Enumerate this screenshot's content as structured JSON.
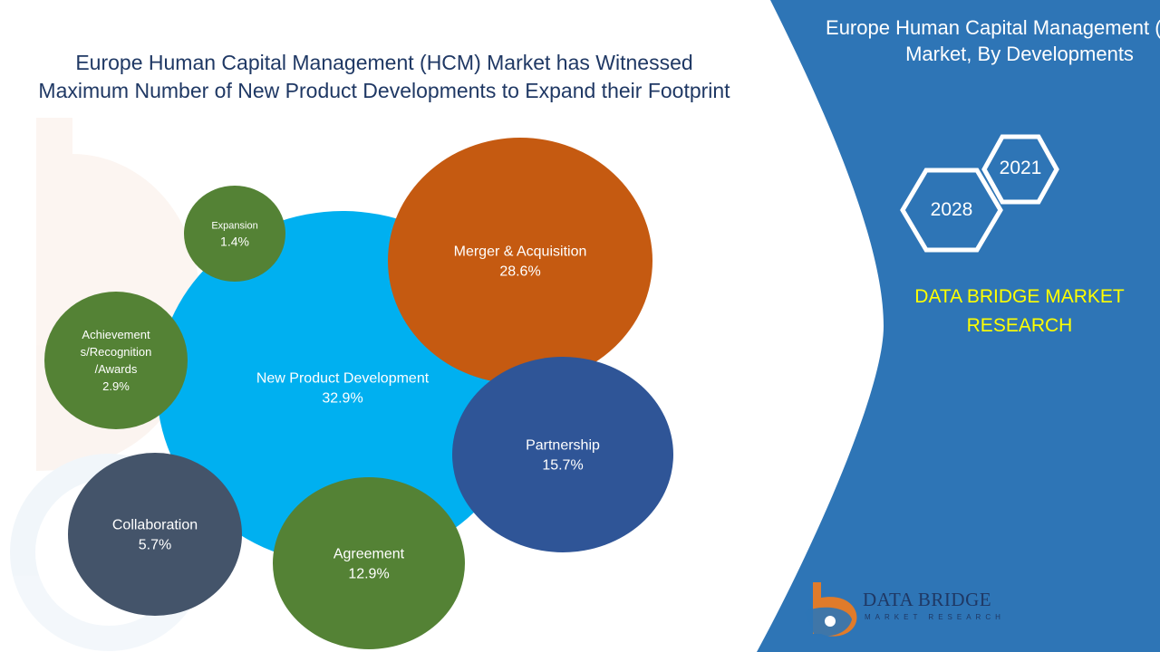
{
  "title": "Europe Human Capital Management (HCM) Market has Witnessed Maximum Number of New Product Developments to Expand their Footprint",
  "side_panel": {
    "title": "Europe Human Capital Management (HCM) Market, By Developments",
    "year_start": "2021",
    "year_end": "2028",
    "brand_name": "DATA BRIDGE MARKET RESEARCH",
    "logo_text": "DATA BRIDGE",
    "logo_subtext": "MARKET RESEARCH"
  },
  "colors": {
    "panel_blue": "#2e75b6",
    "title_navy": "#1f3864",
    "brand_yellow": "#ffff00"
  },
  "chart_data": {
    "type": "bubble",
    "unit": "%",
    "bubbles": [
      {
        "name": "New Product Development",
        "value": 32.9,
        "color": "#00b0f0"
      },
      {
        "name": "Merger & Acquisition",
        "value": 28.6,
        "color": "#c55a11"
      },
      {
        "name": "Partnership",
        "value": 15.7,
        "color": "#2f5597"
      },
      {
        "name": "Agreement",
        "value": 12.9,
        "color": "#548235"
      },
      {
        "name": "Collaboration",
        "value": 5.7,
        "color": "#44546a"
      },
      {
        "name": "Achievements/Recognition/Awards",
        "display_lines": [
          "Achievement",
          "s/Recognition",
          "/Awards"
        ],
        "value": 2.9,
        "color": "#548235"
      },
      {
        "name": "Expansion",
        "value": 1.4,
        "color": "#548235"
      }
    ]
  }
}
